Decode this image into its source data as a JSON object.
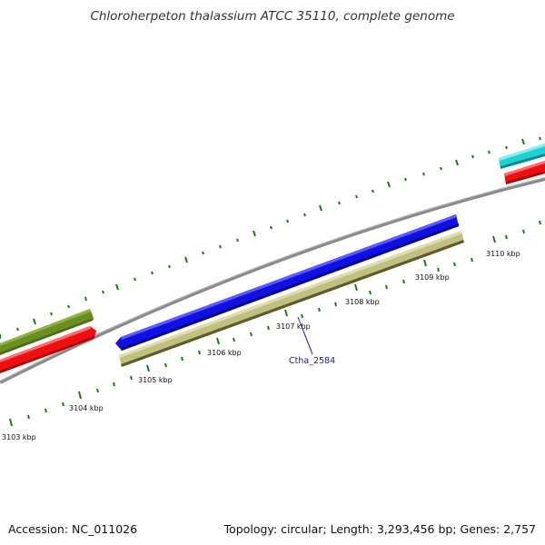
{
  "title": "Chloroherpeton thalassium ATCC 35110, complete genome",
  "footer": {
    "accession": "Accession: NC_011026",
    "summary": "Topology: circular; Length: 3,293,456 bp; Genes: 2,757"
  },
  "scale_labels": [
    "3103 kbp",
    "3104 kbp",
    "3105 kbp",
    "3106 kbp",
    "3107 kbp",
    "3108 kbp",
    "3109 kbp",
    "3110 kbp"
  ],
  "gene_label": "Ctha_2584",
  "colors": {
    "backbone": "#8a8a8a",
    "ticks": "#1a7a1a",
    "gene_blue": "#1010e0",
    "gene_khaki": "#c2c080",
    "gene_olive": "#6b8e23",
    "gene_red": "#ee1010",
    "gene_cyan": "#20d0d0",
    "label_blue": "#1a1aa0"
  }
}
